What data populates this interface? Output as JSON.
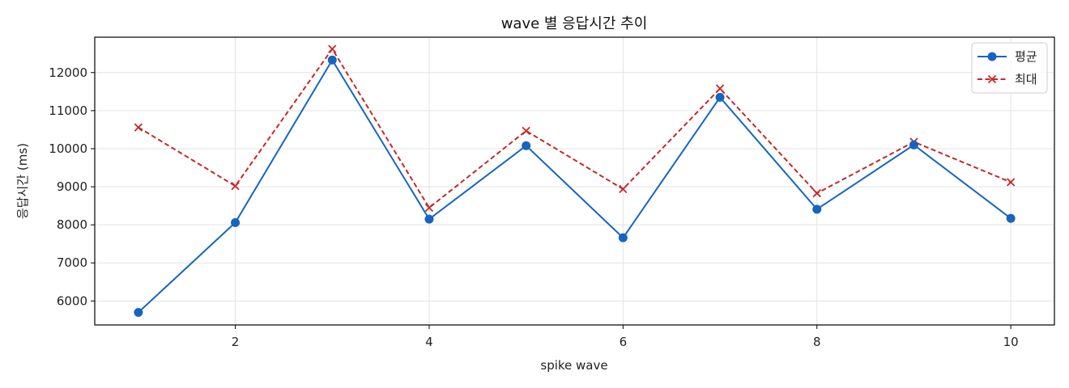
{
  "chart_data": {
    "type": "line",
    "title": "wave 별 응답시간 추이",
    "xlabel": "spike wave",
    "ylabel": "응답시간 (ms)",
    "x": [
      1,
      2,
      3,
      4,
      5,
      6,
      7,
      8,
      9,
      10
    ],
    "xlim": [
      0.55,
      10.45
    ],
    "ylim": [
      5370,
      12930
    ],
    "xticks": [
      2,
      4,
      6,
      8,
      10
    ],
    "yticks": [
      6000,
      7000,
      8000,
      9000,
      10000,
      11000,
      12000
    ],
    "grid": true,
    "legend_position": "top-right",
    "series": [
      {
        "name": "평균",
        "color": "#1565c0",
        "marker": "circle",
        "line_style": "solid",
        "values": [
          5700,
          8060,
          12330,
          8150,
          10080,
          7660,
          11350,
          8410,
          10100,
          8170
        ]
      },
      {
        "name": "최대",
        "color": "#c62828",
        "marker": "x",
        "line_style": "dashed",
        "values": [
          10560,
          9020,
          12620,
          8450,
          10470,
          8940,
          11580,
          8830,
          10180,
          9120
        ]
      }
    ]
  }
}
